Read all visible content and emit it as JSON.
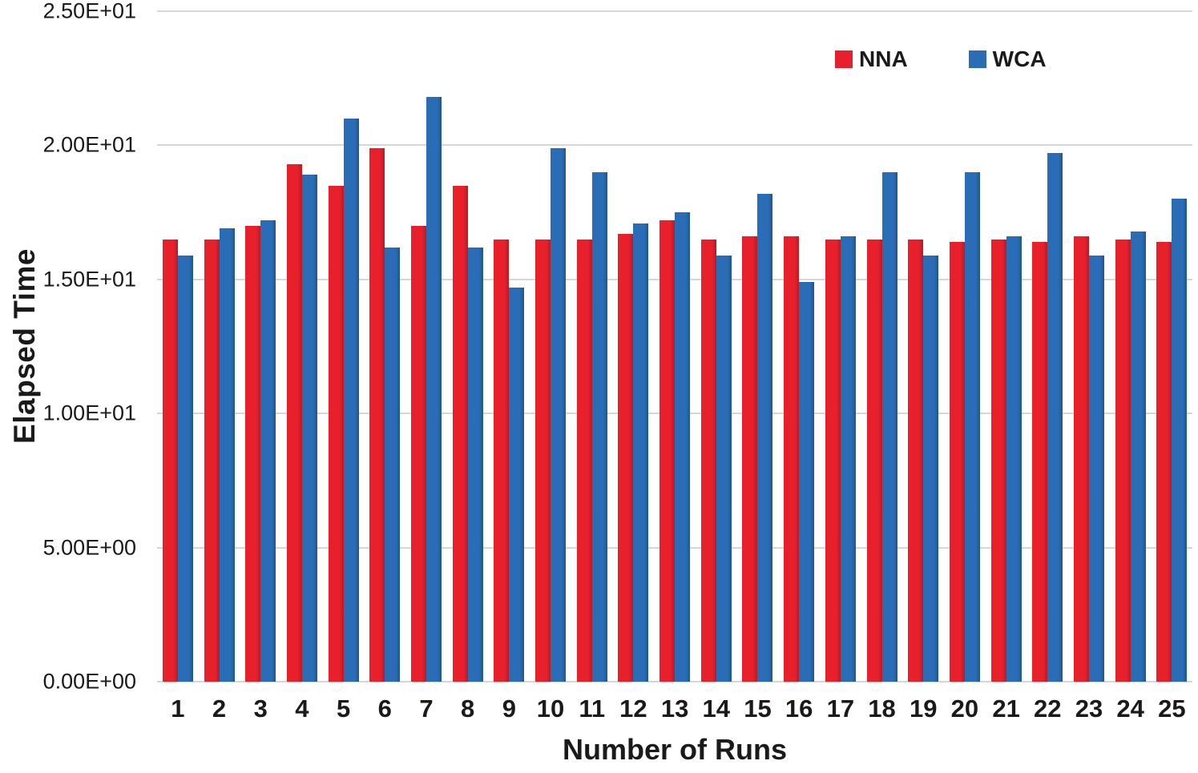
{
  "chart_data": {
    "type": "bar",
    "title": "",
    "xlabel": "Number of Runs",
    "ylabel": "Elapsed Time",
    "ylim": [
      0,
      25
    ],
    "ytick_step": 5,
    "grid": true,
    "legend_position": "top-right",
    "background_color": "#ffffff",
    "gridline_color": "#d6d6d6",
    "yticks": [
      {
        "value": 0,
        "label": "0.00E+00"
      },
      {
        "value": 5,
        "label": "5.00E+00"
      },
      {
        "value": 10,
        "label": "1.00E+01"
      },
      {
        "value": 15,
        "label": "1.50E+01"
      },
      {
        "value": 20,
        "label": "2.00E+01"
      },
      {
        "value": 25,
        "label": "2.50E+01"
      }
    ],
    "categories": [
      "1",
      "2",
      "3",
      "4",
      "5",
      "6",
      "7",
      "8",
      "9",
      "10",
      "11",
      "12",
      "13",
      "14",
      "15",
      "16",
      "17",
      "18",
      "19",
      "20",
      "21",
      "22",
      "23",
      "24",
      "25"
    ],
    "series": [
      {
        "name": "NNA",
        "color": "#e7202c",
        "color_dark": "#b91b24",
        "values": [
          16.5,
          16.5,
          17.0,
          19.3,
          18.5,
          19.9,
          17.0,
          18.5,
          16.5,
          16.5,
          16.5,
          16.7,
          17.2,
          16.5,
          16.6,
          16.6,
          16.5,
          16.5,
          16.5,
          16.4,
          16.5,
          16.4,
          16.6,
          16.5,
          16.4
        ]
      },
      {
        "name": "WCA",
        "color": "#2a6db6",
        "color_dark": "#1f578d",
        "values": [
          15.9,
          16.9,
          17.2,
          18.9,
          21.0,
          16.2,
          21.8,
          16.2,
          14.7,
          19.9,
          19.0,
          17.1,
          17.5,
          15.9,
          18.2,
          14.9,
          16.6,
          19.0,
          15.9,
          19.0,
          16.6,
          19.7,
          15.9,
          16.8,
          18.0
        ]
      }
    ]
  }
}
